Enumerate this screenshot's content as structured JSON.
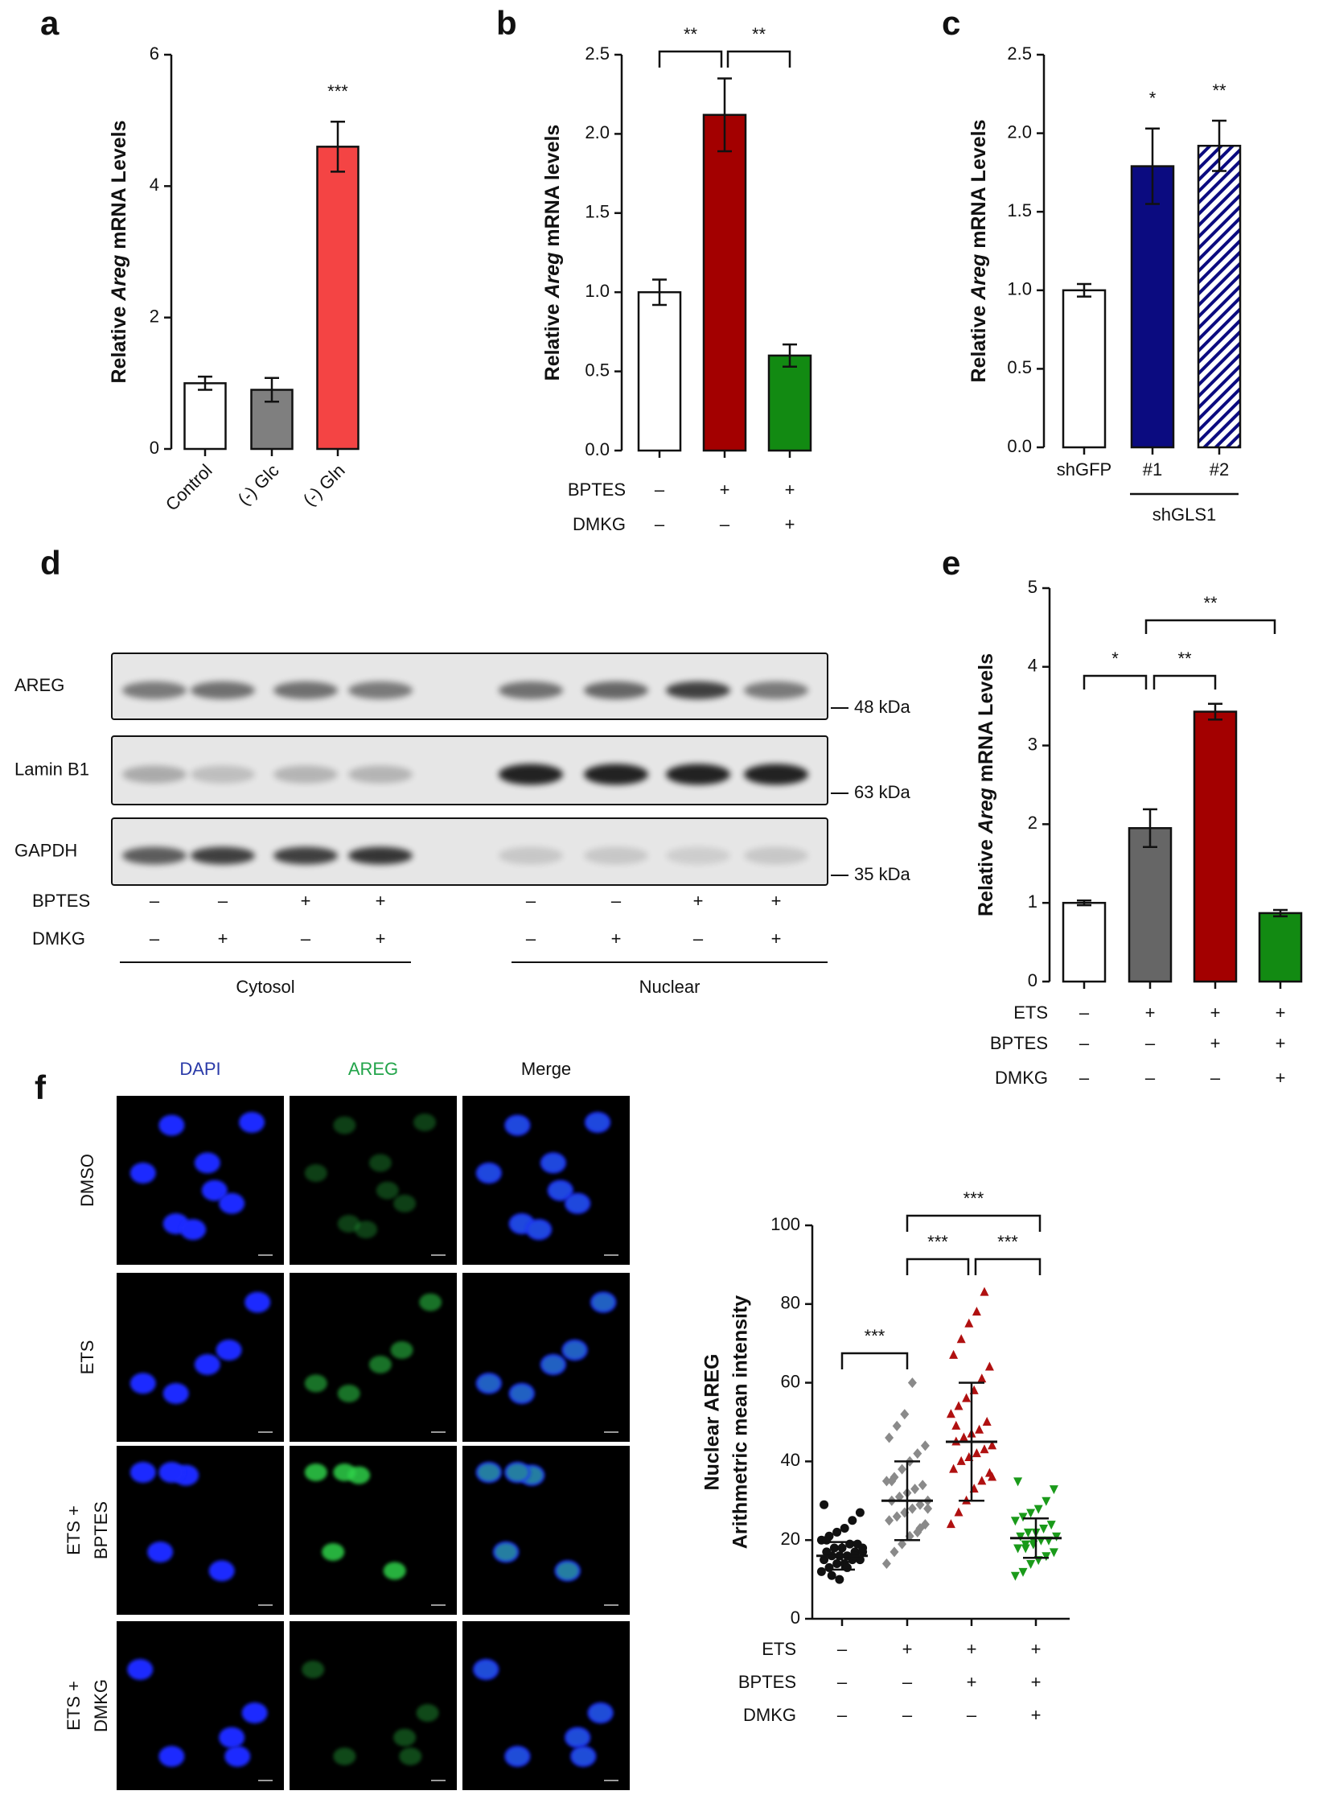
{
  "panel_labels": [
    "a",
    "b",
    "c",
    "d",
    "e",
    "f"
  ],
  "chart_data": [
    {
      "type": "bar",
      "ylabel": [
        "Relative ",
        "Areg",
        " mRNA Levels"
      ],
      "categories": [
        "Control",
        "(-) Glc",
        "(-) Gln"
      ],
      "values": [
        1.0,
        0.9,
        4.6
      ],
      "errors": [
        0.1,
        0.18,
        0.38
      ],
      "colors": [
        "#ffffff",
        "#7f7f7f",
        "#f44444"
      ],
      "ylim": [
        0,
        6
      ],
      "yticks": [
        0,
        2,
        4,
        6
      ],
      "annotations": [
        "***"
      ]
    },
    {
      "type": "bar",
      "ylabel": [
        "Relative ",
        "Areg",
        " mRNA levels"
      ],
      "values": [
        1.0,
        2.12,
        0.6
      ],
      "errors": [
        0.08,
        0.23,
        0.07
      ],
      "colors": [
        "#ffffff",
        "#a30000",
        "#128a12"
      ],
      "ylim": [
        0,
        2.5
      ],
      "yticks": [
        {
          "value": 0,
          "label": "0.0"
        },
        0.5,
        {
          "value": 1,
          "label": "1.0"
        },
        1.5,
        {
          "value": 2,
          "label": "2.0"
        },
        2.5
      ],
      "conditions": [
        {
          "name": "BPTES",
          "signs": [
            "–",
            "+",
            "+"
          ]
        },
        {
          "name": "DMKG",
          "signs": [
            "–",
            "–",
            "+"
          ]
        }
      ],
      "annotations": [
        "**",
        "**"
      ]
    },
    {
      "type": "bar",
      "ylabel": [
        "Relative ",
        "Areg",
        " mRNA Levels"
      ],
      "categories": [
        "shGFP",
        "#1",
        "#2"
      ],
      "group_label": "shGLS1",
      "values": [
        1.0,
        1.79,
        1.92
      ],
      "errors": [
        0.04,
        0.24,
        0.16
      ],
      "colors": [
        "#ffffff",
        "#0b0b80",
        "#0b0b80"
      ],
      "hatch": [
        false,
        false,
        true
      ],
      "ylim": [
        0,
        2.5
      ],
      "yticks": [
        {
          "value": 0,
          "label": "0.0"
        },
        0.5,
        {
          "value": 1,
          "label": "1.0"
        },
        1.5,
        {
          "value": 2,
          "label": "2.0"
        },
        2.5
      ],
      "annotations": [
        "*",
        "**"
      ]
    },
    {
      "type": "bar",
      "ylabel": [
        "Relative ",
        "Areg",
        " mRNA Levels"
      ],
      "values": [
        1.0,
        1.95,
        3.43,
        0.87
      ],
      "errors": [
        0.03,
        0.24,
        0.1,
        0.04
      ],
      "colors": [
        "#ffffff",
        "#666666",
        "#a30000",
        "#128a12"
      ],
      "ylim": [
        0,
        5
      ],
      "yticks": [
        0,
        1,
        2,
        3,
        4,
        5
      ],
      "conditions": [
        {
          "name": "ETS",
          "signs": [
            "–",
            "+",
            "+",
            "+"
          ]
        },
        {
          "name": "BPTES",
          "signs": [
            "–",
            "–",
            "+",
            "+"
          ]
        },
        {
          "name": "DMKG",
          "signs": [
            "–",
            "–",
            "–",
            "+"
          ]
        }
      ],
      "annotations": [
        "*",
        "**",
        "**"
      ]
    },
    {
      "type": "dot",
      "ylabel": [
        "Nuclear AREG",
        "Arithmetric mean intensity"
      ],
      "ylim": [
        0,
        100
      ],
      "yticks": [
        0,
        20,
        40,
        60,
        80,
        100
      ],
      "groups": [
        {
          "color": "#111111",
          "marker": "circle",
          "mean": 16,
          "sd": 3.5,
          "values": [
            12,
            13,
            14,
            14,
            15,
            15,
            15,
            16,
            16,
            16,
            17,
            17,
            17,
            18,
            18,
            19,
            19,
            20,
            21,
            22,
            23,
            25,
            27,
            29,
            11,
            10,
            13,
            16,
            18,
            20
          ]
        },
        {
          "color": "#8a8a8a",
          "marker": "diamond",
          "mean": 30,
          "sd": 10,
          "values": [
            14,
            17,
            19,
            21,
            22,
            24,
            25,
            26,
            27,
            28,
            29,
            30,
            30,
            31,
            32,
            33,
            34,
            35,
            36,
            38,
            40,
            42,
            44,
            46,
            49,
            52,
            60,
            23,
            28,
            35
          ]
        },
        {
          "color": "#b01010",
          "marker": "triangle-up",
          "mean": 45,
          "sd": 15,
          "values": [
            24,
            27,
            30,
            33,
            35,
            37,
            38,
            40,
            41,
            42,
            43,
            44,
            45,
            46,
            47,
            48,
            50,
            52,
            54,
            56,
            58,
            61,
            64,
            67,
            71,
            75,
            78,
            83,
            36,
            49
          ]
        },
        {
          "color": "#1a9a1a",
          "marker": "triangle-down",
          "mean": 20.5,
          "sd": 5,
          "values": [
            11,
            12,
            14,
            15,
            16,
            17,
            18,
            19,
            19,
            20,
            20,
            21,
            21,
            22,
            22,
            23,
            24,
            25,
            26,
            27,
            28,
            30,
            33,
            35,
            18,
            20
          ]
        }
      ],
      "conditions": [
        {
          "name": "ETS",
          "signs": [
            "–",
            "+",
            "+",
            "+"
          ]
        },
        {
          "name": "BPTES",
          "signs": [
            "–",
            "–",
            "+",
            "+"
          ]
        },
        {
          "name": "DMKG",
          "signs": [
            "–",
            "–",
            "–",
            "+"
          ]
        }
      ],
      "annotations": [
        "***",
        "***",
        "***",
        "***"
      ]
    }
  ],
  "blot": {
    "rows": [
      "AREG",
      "Lamin B1",
      "GAPDH"
    ],
    "markers": [
      "48 kDa",
      "63 kDa",
      "35 kDa"
    ],
    "conditions": [
      {
        "name": "BPTES",
        "signs": [
          "–",
          "–",
          "+",
          "+",
          "–",
          "–",
          "+",
          "+"
        ]
      },
      {
        "name": "DMKG",
        "signs": [
          "–",
          "+",
          "–",
          "+",
          "–",
          "+",
          "–",
          "+"
        ]
      }
    ],
    "fractions": [
      "Cytosol",
      "Nuclear"
    ]
  },
  "micrographs": {
    "columns": [
      "DAPI",
      "AREG",
      "Merge"
    ],
    "rows": [
      [
        "DMSO"
      ],
      [
        "ETS"
      ],
      [
        "ETS +",
        "BPTES"
      ],
      [
        "ETS +",
        "DMKG"
      ]
    ]
  }
}
